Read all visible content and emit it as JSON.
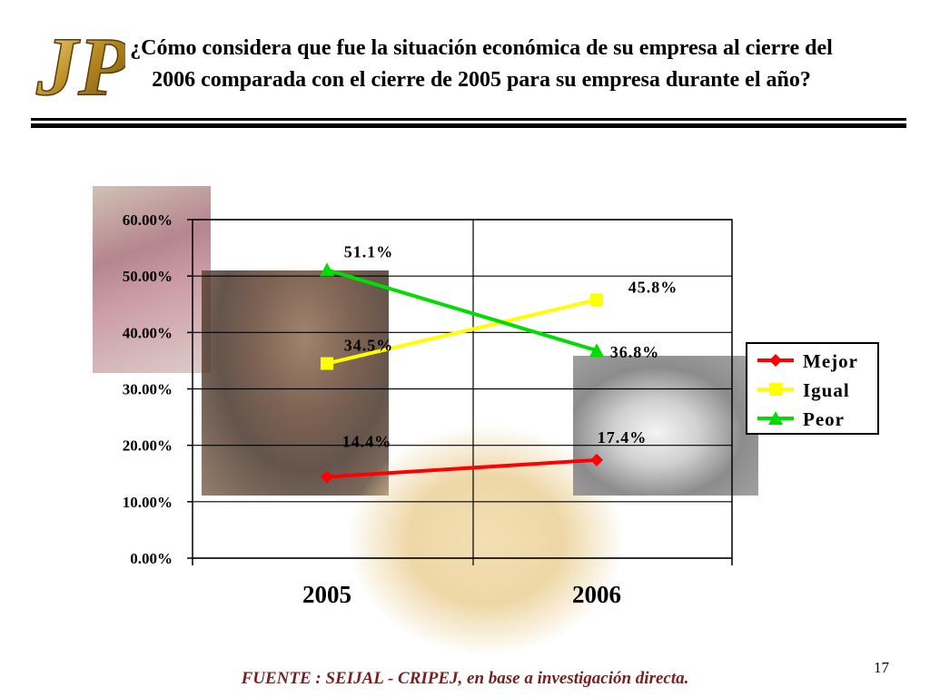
{
  "slide": {
    "title": "¿Cómo considera que fue la situación económica de su empresa al cierre del 2006 comparada con el cierre de 2005 para su empresa durante el año?",
    "logo_text": "JP",
    "source": "FUENTE :  SEIJAL - CRIPEJ,  en base a investigación directa.",
    "page_number": "17"
  },
  "colors": {
    "mejor": "#ff0000",
    "igual": "#ffff00",
    "peor": "#00dd00",
    "logo_gold": "#c9a23a"
  },
  "chart_data": {
    "type": "line",
    "title": "",
    "categories": [
      "2005",
      "2006"
    ],
    "ylim": [
      0,
      60
    ],
    "yticks": [
      0,
      10,
      20,
      30,
      40,
      50,
      60
    ],
    "ytick_labels": [
      "0.00%",
      "10.00%",
      "20.00%",
      "30.00%",
      "40.00%",
      "50.00%",
      "60.00%"
    ],
    "grid": true,
    "legend_position": "right",
    "series": [
      {
        "name": "Mejor",
        "values": [
          14.4,
          17.4
        ],
        "labels": [
          "14.4%",
          "17.4%"
        ],
        "marker": "diamond"
      },
      {
        "name": "Igual",
        "values": [
          34.5,
          45.8
        ],
        "labels": [
          "34.5%",
          "45.8%"
        ],
        "marker": "square"
      },
      {
        "name": "Peor",
        "values": [
          51.1,
          36.8
        ],
        "labels": [
          "51.1%",
          "36.8%"
        ],
        "marker": "triangle"
      }
    ]
  }
}
